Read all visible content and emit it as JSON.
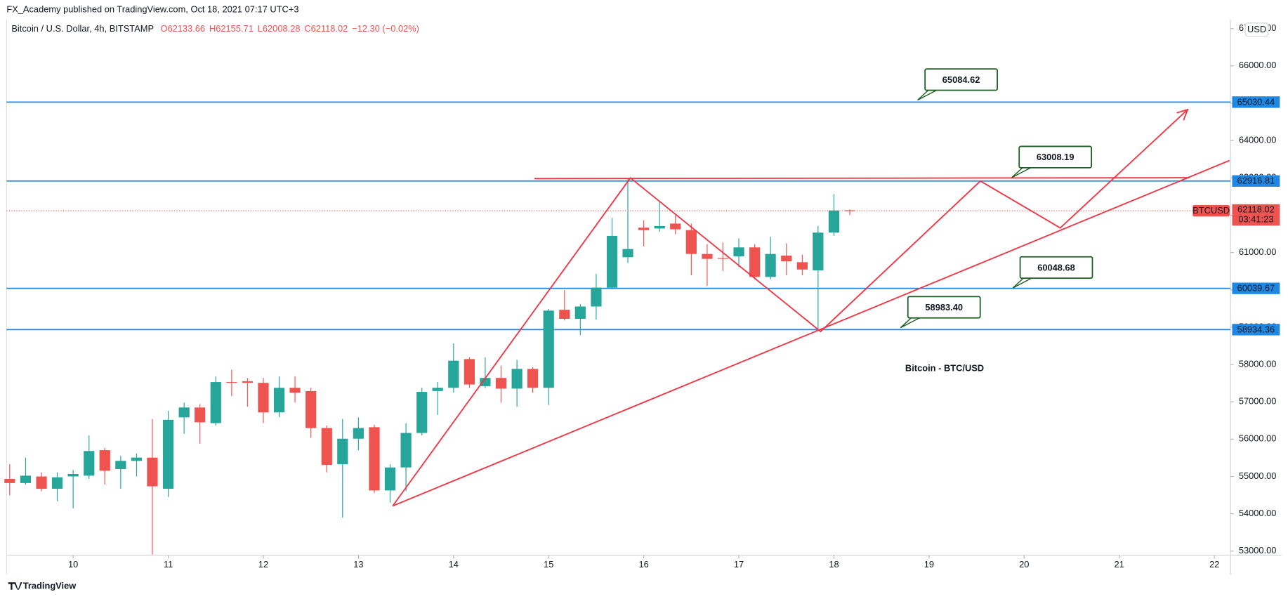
{
  "page_header": "FX_Academy published on TradingView.com, Oct 18, 2021 07:17 UTC+3",
  "footer_logo": "TradingView",
  "currency_button": "USD",
  "chart_data": {
    "type": "candlestick",
    "title": "Bitcoin - BTC/USD",
    "legend_title": "Bitcoin / U.S. Dollar, 4h, BITSTAMP",
    "ohlc_header": [
      "O62133.66",
      "H62155.71",
      "L62008.28",
      "C62118.02",
      "−12.30 (−0.02%)"
    ],
    "up_color": "#26a69a",
    "down_color": "#ef5350",
    "x": [
      9.333,
      9.5,
      9.667,
      9.833,
      10,
      10.167,
      10.333,
      10.5,
      10.667,
      10.833,
      11,
      11.167,
      11.333,
      11.5,
      11.667,
      11.833,
      12,
      12.167,
      12.333,
      12.5,
      12.667,
      12.833,
      13,
      13.167,
      13.333,
      13.5,
      13.667,
      13.833,
      14,
      14.167,
      14.333,
      14.5,
      14.667,
      14.833,
      15,
      15.167,
      15.333,
      15.5,
      15.667,
      15.833,
      16,
      16.167,
      16.333,
      16.5,
      16.667,
      16.833,
      17,
      17.167,
      17.333,
      17.5,
      17.667,
      17.833,
      18,
      18.167
    ],
    "open": [
      54934,
      54824,
      55000,
      54670,
      55000,
      55022,
      55704,
      55198,
      55418,
      55506,
      54670,
      56584,
      56848,
      56430,
      57530,
      57552,
      57508,
      56716,
      57376,
      57288,
      56298,
      55330,
      56012,
      56320,
      54626,
      55242,
      56166,
      57288,
      57376,
      58146,
      57420,
      57640,
      57354,
      57882,
      57376,
      59466,
      59224,
      59554,
      60060,
      60874,
      61666,
      61644,
      61776,
      61600,
      60962,
      60852,
      60896,
      61138,
      60346,
      60918,
      60742,
      60522,
      61534,
      62133.66
    ],
    "high": [
      55330,
      55506,
      55110,
      55110,
      55176,
      56100,
      55770,
      55550,
      55616,
      56540,
      56760,
      56980,
      56936,
      57684,
      57860,
      57640,
      57640,
      57684,
      57684,
      57376,
      56364,
      56540,
      56584,
      56386,
      55330,
      56430,
      57376,
      57530,
      58564,
      58190,
      58190,
      57970,
      58124,
      57926,
      59488,
      59994,
      59620,
      60434,
      61930,
      62986,
      61864,
      62370,
      61996,
      61776,
      61226,
      61270,
      61380,
      61226,
      61424,
      61248,
      60940,
      61710,
      62568,
      62155.71
    ],
    "low": [
      54494,
      54780,
      54604,
      54340,
      54142,
      54934,
      54780,
      54670,
      55000,
      52910,
      54450,
      56144,
      55880,
      56364,
      57156,
      56870,
      56430,
      56584,
      56980,
      56034,
      55110,
      53900,
      55704,
      54560,
      54296,
      54604,
      56100,
      56650,
      57244,
      57376,
      57376,
      56980,
      56870,
      57244,
      56914,
      59180,
      58784,
      59202,
      60016,
      60720,
      61160,
      61556,
      61490,
      60390,
      60104,
      60500,
      60610,
      60280,
      60280,
      60390,
      60390,
      58960,
      61446,
      62008.28
    ],
    "close": [
      54824,
      55022,
      54670,
      54978,
      55066,
      55682,
      55154,
      55418,
      55506,
      54736,
      56518,
      56848,
      56452,
      57530,
      57508,
      57508,
      56716,
      57376,
      57244,
      56298,
      55308,
      56012,
      56298,
      54626,
      55242,
      56166,
      57266,
      57376,
      58102,
      57464,
      57640,
      57354,
      57882,
      57376,
      59444,
      59224,
      59554,
      60060,
      61446,
      61094,
      61600,
      61710,
      61622,
      60962,
      60830,
      60830,
      61138,
      60346,
      60962,
      60764,
      60544,
      61534,
      62128,
      62118.02
    ],
    "xlim": [
      9.3,
      22.17
    ],
    "xticks": [
      10,
      11,
      12,
      13,
      14,
      15,
      16,
      17,
      18,
      19,
      20,
      21,
      22
    ],
    "ylim": [
      52890,
      67150
    ],
    "yticks": [
      {
        "value": 53000,
        "label": "53000.00"
      },
      {
        "value": 54000,
        "label": "54000.00"
      },
      {
        "value": 55000,
        "label": "55000.00"
      },
      {
        "value": 56000,
        "label": "56000.00"
      },
      {
        "value": 57000,
        "label": "57000.00"
      },
      {
        "value": 58000,
        "label": "58000.00"
      },
      {
        "value": 59000,
        "label": "59000.00"
      },
      {
        "value": 60000,
        "label": "60000.00"
      },
      {
        "value": 61000,
        "label": "61000.00"
      },
      {
        "value": 62000,
        "label": "62000.00"
      },
      {
        "value": 63000,
        "label": "63000.00"
      },
      {
        "value": 64000,
        "label": "64000.00"
      },
      {
        "value": 65000,
        "label": "65000.00"
      },
      {
        "value": 66000,
        "label": "66000.00"
      },
      {
        "value": 67000,
        "label": "67000.00"
      }
    ],
    "grid": false,
    "levels": [
      65030.44,
      62916.81,
      60039.67,
      58934.36
    ],
    "level_color": "#1e88e5",
    "annotations": [
      {
        "value": 65084.62,
        "label": "65084.62",
        "x": 18.88
      },
      {
        "value": 63008.19,
        "label": "63008.19",
        "x": 19.87
      },
      {
        "value": 60048.68,
        "label": "60048.68",
        "x": 19.88
      },
      {
        "value": 58983.4,
        "label": "58983.40",
        "x": 18.7
      }
    ],
    "drawing_color": "#f23645",
    "drawings": [
      {
        "points": [
          [
            13.36,
            54210
          ],
          [
            15.86,
            63000
          ],
          [
            17.86,
            58884
          ],
          [
            19.54,
            62916
          ],
          [
            20.38,
            61660
          ],
          [
            21.72,
            64832
          ]
        ],
        "arrow": true
      },
      {
        "points": [
          [
            13.36,
            54210
          ],
          [
            22.16,
            63466
          ]
        ],
        "arrow": false
      },
      {
        "points": [
          [
            14.85,
            62982
          ],
          [
            21.74,
            63004
          ]
        ],
        "arrow": false
      }
    ],
    "symbol_label": "BTCUSD",
    "countdown": "03:41:23"
  }
}
